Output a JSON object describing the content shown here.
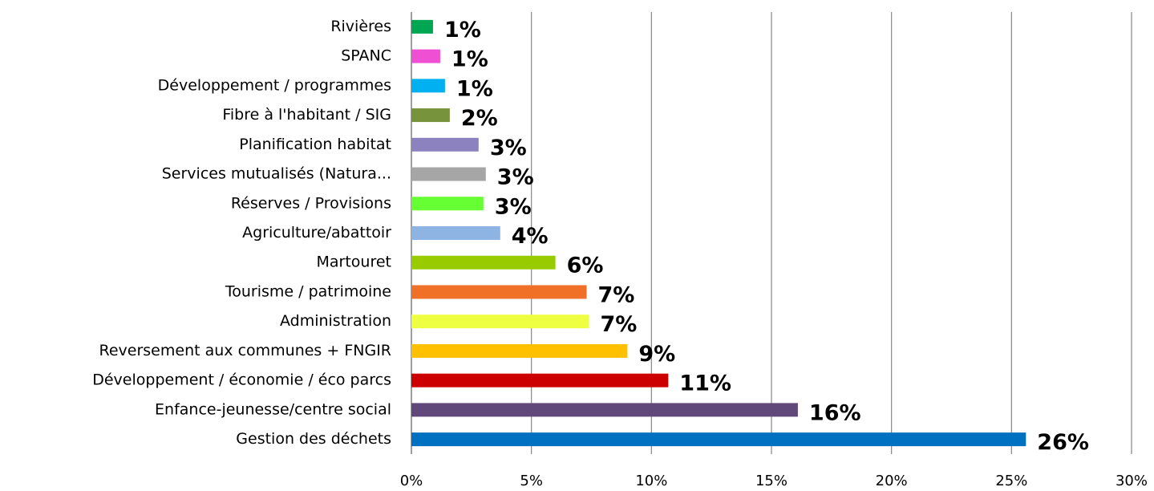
{
  "chart_data": {
    "type": "barh",
    "categories": [
      "Rivières",
      "SPANC",
      "Développement / programmes",
      "Fibre à l'habitant / SIG",
      "Planification habitat",
      "Services mutualisés (Natura...",
      "Réserves / Provisions",
      "Agriculture/abattoir",
      "Martouret",
      "Tourisme / patrimoine",
      "Administration",
      "Reversement aux communes + FNGIR",
      "Développement / économie / éco parcs",
      "Enfance-jeunesse/centre social",
      "Gestion des déchets"
    ],
    "values": [
      0.9,
      1.2,
      1.4,
      1.6,
      2.8,
      3.1,
      3.0,
      3.7,
      6.0,
      7.3,
      7.4,
      9.0,
      10.7,
      16.1,
      25.6
    ],
    "value_labels": [
      "1%",
      "1%",
      "1%",
      "2%",
      "3%",
      "3%",
      "3%",
      "4%",
      "6%",
      "7%",
      "7%",
      "9%",
      "11%",
      "16%",
      "26%"
    ],
    "colors": [
      "#00a651",
      "#ee4fd3",
      "#00b0f0",
      "#77933c",
      "#8c82c0",
      "#a6a6a6",
      "#66ff33",
      "#8db4e2",
      "#99cc00",
      "#f07028",
      "#eeff41",
      "#ffc000",
      "#cc0000",
      "#60497a",
      "#0070c0"
    ],
    "xlim": [
      0,
      30
    ],
    "xticks": [
      {
        "value": 0,
        "label": "0%"
      },
      {
        "value": 5,
        "label": "5%"
      },
      {
        "value": 10,
        "label": "10%"
      },
      {
        "value": 15,
        "label": "15%"
      },
      {
        "value": 20,
        "label": "20%"
      },
      {
        "value": 25,
        "label": "25%"
      },
      {
        "value": 30,
        "label": "30%"
      }
    ],
    "grid": true
  }
}
